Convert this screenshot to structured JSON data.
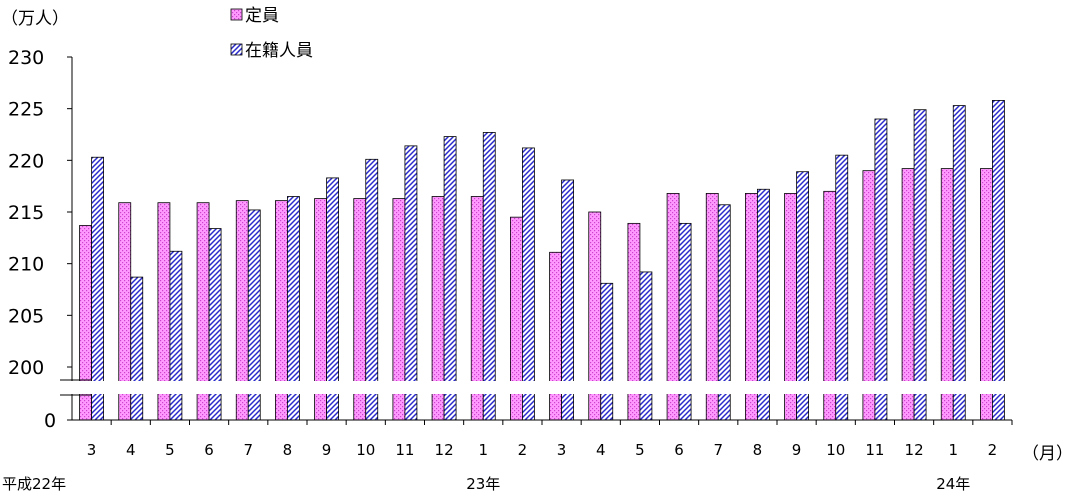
{
  "chart_data": {
    "type": "bar",
    "y_unit_label": "（万人）",
    "x_unit_label": "（月）",
    "legend_position": "top",
    "axis_break": true,
    "ylim": [
      200,
      230
    ],
    "y_ticks": [
      "0",
      "200",
      "205",
      "210",
      "215",
      "220",
      "225",
      "230"
    ],
    "categories": [
      "3",
      "4",
      "5",
      "6",
      "7",
      "8",
      "9",
      "10",
      "11",
      "12",
      "1",
      "2",
      "3",
      "4",
      "5",
      "6",
      "7",
      "8",
      "9",
      "10",
      "11",
      "12",
      "1",
      "2"
    ],
    "year_labels": [
      {
        "category_index": 0,
        "text": "平成22年"
      },
      {
        "category_index": 10,
        "text": "23年"
      },
      {
        "category_index": 22,
        "text": "24年"
      }
    ],
    "series": [
      {
        "name": "定員",
        "color": "#ff99ff",
        "pattern": "dots",
        "values": [
          213.7,
          215.9,
          215.9,
          215.9,
          216.1,
          216.1,
          216.3,
          216.3,
          216.3,
          216.5,
          216.5,
          214.5,
          211.1,
          215.0,
          213.9,
          216.8,
          216.8,
          216.8,
          216.8,
          217.0,
          219.0,
          219.2,
          219.2,
          219.2
        ]
      },
      {
        "name": "在籍人員",
        "color": "#1f1fcc",
        "pattern": "diagonal-stripes",
        "values": [
          220.3,
          208.7,
          211.2,
          213.4,
          215.2,
          216.5,
          218.3,
          220.1,
          221.4,
          222.3,
          222.7,
          221.2,
          218.1,
          208.1,
          209.2,
          213.9,
          215.7,
          217.2,
          218.9,
          220.5,
          224.0,
          224.9,
          225.3,
          225.8
        ]
      }
    ]
  }
}
